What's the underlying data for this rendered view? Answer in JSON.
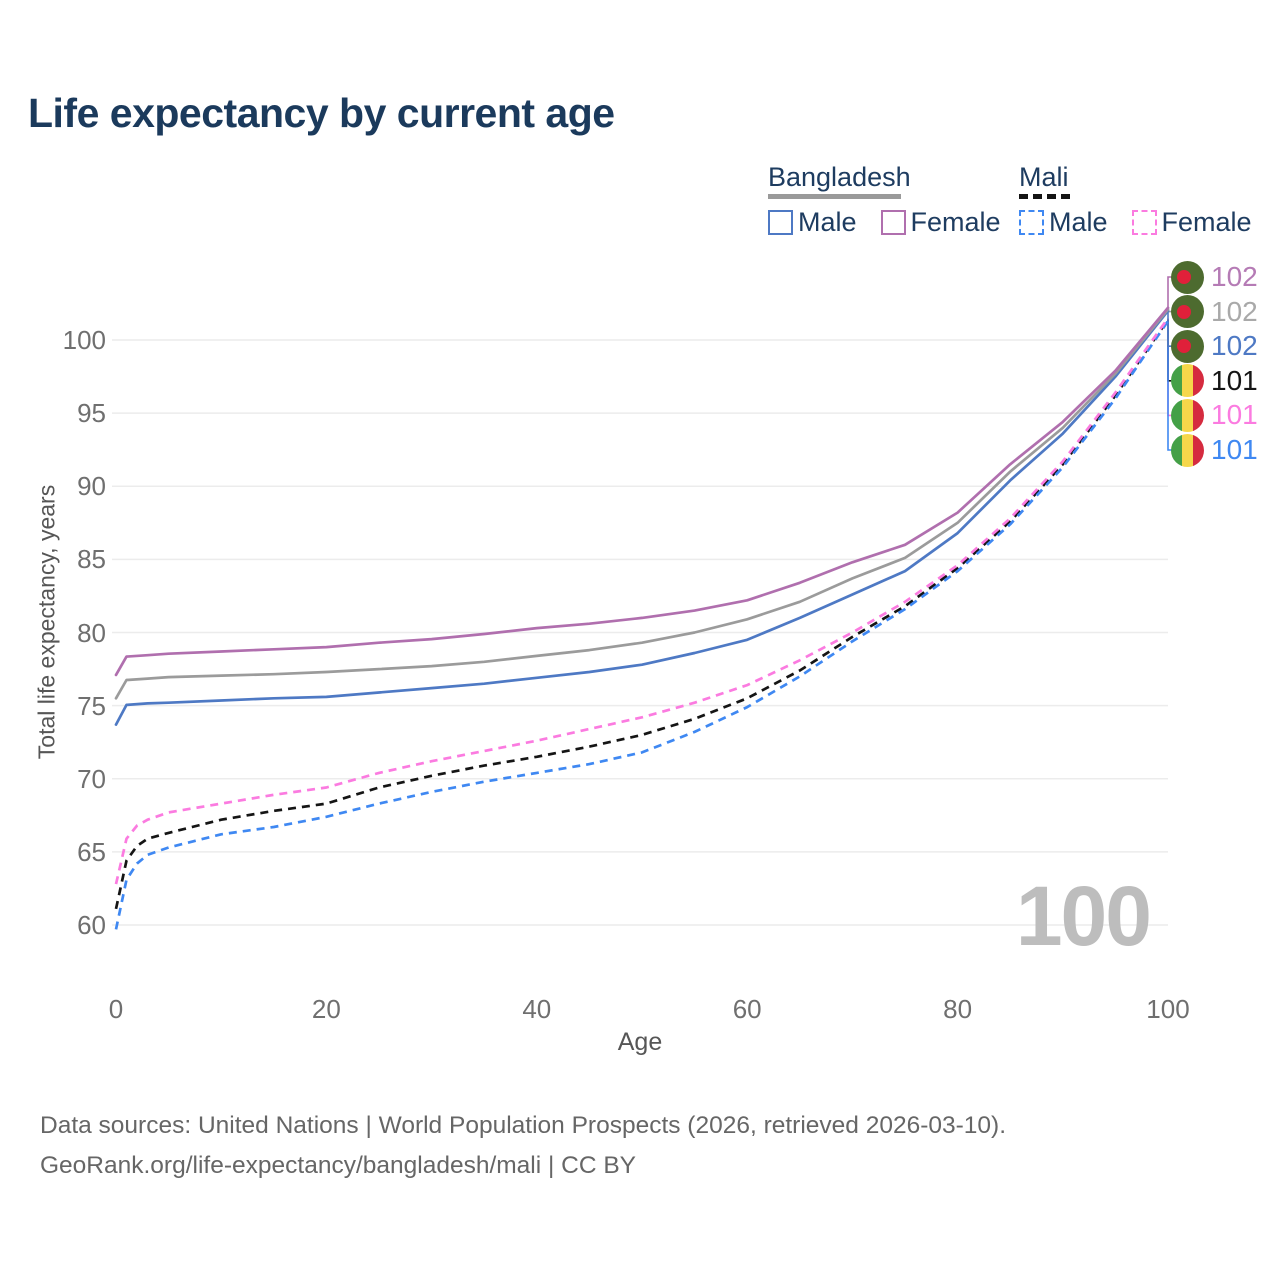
{
  "title": "Life expectancy by current age",
  "legend": {
    "groups": [
      {
        "label": "Bangladesh",
        "line_style": "solid",
        "items": [
          {
            "label": "Male",
            "color": "#4e79c4"
          },
          {
            "label": "Female",
            "color": "#b06fae"
          }
        ]
      },
      {
        "label": "Mali",
        "line_style": "dashed",
        "items": [
          {
            "label": "Male",
            "color": "#3f88f2"
          },
          {
            "label": "Female",
            "color": "#fb7be0"
          }
        ]
      }
    ]
  },
  "axes": {
    "y_label": "Total life expectancy, years",
    "y_ticks": [
      60,
      65,
      70,
      75,
      80,
      85,
      90,
      95,
      100
    ],
    "x_label": "Age",
    "x_ticks": [
      0,
      20,
      40,
      60,
      80,
      100
    ]
  },
  "watermark": "100",
  "end_labels": [
    {
      "value": "102",
      "series": "bangladesh-female",
      "flag": "bangladesh",
      "color": "#b57bb5"
    },
    {
      "value": "102",
      "series": "bangladesh-total",
      "flag": "bangladesh",
      "color": "#a9a9a9"
    },
    {
      "value": "102",
      "series": "bangladesh-male",
      "flag": "bangladesh",
      "color": "#4e79c4"
    },
    {
      "value": "101",
      "series": "mali-total",
      "flag": "mali",
      "color": "#151515"
    },
    {
      "value": "101",
      "series": "mali-female",
      "flag": "mali",
      "color": "#fb7be0"
    },
    {
      "value": "101",
      "series": "mali-male",
      "flag": "mali",
      "color": "#3f88f2"
    }
  ],
  "footer": {
    "line1": "Data sources: United Nations | World Population Prospects (2026, retrieved 2026-03-10).",
    "line2": "GeoRank.org/life-expectancy/bangladesh/mali | CC BY"
  },
  "colors": {
    "title_text": "#1b3a5c",
    "legend_text": "#1e3c60",
    "grid": "#ececec",
    "tick_text": "#6f6f6f",
    "watermark": "#bdbdbd",
    "bangladesh_flag_green": "#4d6b2f",
    "bangladesh_flag_red": "#e0203a",
    "mali_flag_green": "#44a047",
    "mali_flag_yellow": "#f6d74a",
    "mali_flag_red": "#d52b3f"
  },
  "chart_data": {
    "type": "line",
    "title": "Life expectancy by current age",
    "xlabel": "Age",
    "ylabel": "Total life expectancy, years",
    "xlim": [
      0,
      100
    ],
    "ylim": [
      59,
      103
    ],
    "grid": true,
    "legend_position": "top-right",
    "series": [
      {
        "key": "bangladesh-male",
        "name": "Bangladesh Male",
        "color": "#4e79c4",
        "dashed": false,
        "points": [
          [
            0,
            73.7
          ],
          [
            1,
            75.05
          ],
          [
            3,
            75.15
          ],
          [
            5,
            75.2
          ],
          [
            10,
            75.35
          ],
          [
            15,
            75.5
          ],
          [
            20,
            75.6
          ],
          [
            25,
            75.9
          ],
          [
            30,
            76.2
          ],
          [
            35,
            76.5
          ],
          [
            40,
            76.9
          ],
          [
            45,
            77.3
          ],
          [
            50,
            77.8
          ],
          [
            55,
            78.6
          ],
          [
            60,
            79.5
          ],
          [
            65,
            81.0
          ],
          [
            70,
            82.6
          ],
          [
            75,
            84.2
          ],
          [
            80,
            86.8
          ],
          [
            85,
            90.4
          ],
          [
            90,
            93.6
          ],
          [
            95,
            97.5
          ],
          [
            100,
            102.0
          ]
        ]
      },
      {
        "key": "bangladesh-total",
        "name": "Bangladesh Both sexes",
        "color": "#9b9b9b",
        "dashed": false,
        "points": [
          [
            0,
            75.5
          ],
          [
            1,
            76.75
          ],
          [
            3,
            76.85
          ],
          [
            5,
            76.95
          ],
          [
            10,
            77.05
          ],
          [
            15,
            77.15
          ],
          [
            20,
            77.3
          ],
          [
            25,
            77.5
          ],
          [
            30,
            77.7
          ],
          [
            35,
            78.0
          ],
          [
            40,
            78.4
          ],
          [
            45,
            78.8
          ],
          [
            50,
            79.3
          ],
          [
            55,
            80.0
          ],
          [
            60,
            80.9
          ],
          [
            65,
            82.1
          ],
          [
            70,
            83.7
          ],
          [
            75,
            85.1
          ],
          [
            80,
            87.5
          ],
          [
            85,
            91.0
          ],
          [
            90,
            94.0
          ],
          [
            95,
            97.7
          ],
          [
            100,
            102.1
          ]
        ]
      },
      {
        "key": "bangladesh-female",
        "name": "Bangladesh Female",
        "color": "#b06fae",
        "dashed": false,
        "points": [
          [
            0,
            77.1
          ],
          [
            1,
            78.35
          ],
          [
            3,
            78.45
          ],
          [
            5,
            78.55
          ],
          [
            10,
            78.7
          ],
          [
            15,
            78.85
          ],
          [
            20,
            79.0
          ],
          [
            25,
            79.3
          ],
          [
            30,
            79.55
          ],
          [
            35,
            79.9
          ],
          [
            40,
            80.3
          ],
          [
            45,
            80.6
          ],
          [
            50,
            81.0
          ],
          [
            55,
            81.5
          ],
          [
            60,
            82.2
          ],
          [
            65,
            83.4
          ],
          [
            70,
            84.8
          ],
          [
            75,
            86.0
          ],
          [
            80,
            88.2
          ],
          [
            85,
            91.5
          ],
          [
            90,
            94.4
          ],
          [
            95,
            97.9
          ],
          [
            100,
            102.2
          ]
        ]
      },
      {
        "key": "mali-total",
        "name": "Mali Both sexes",
        "color": "#151515",
        "dashed": true,
        "points": [
          [
            0,
            61.1
          ],
          [
            1,
            64.4
          ],
          [
            2,
            65.4
          ],
          [
            3,
            65.9
          ],
          [
            5,
            66.3
          ],
          [
            10,
            67.2
          ],
          [
            15,
            67.8
          ],
          [
            20,
            68.3
          ],
          [
            25,
            69.4
          ],
          [
            30,
            70.2
          ],
          [
            35,
            70.9
          ],
          [
            40,
            71.5
          ],
          [
            45,
            72.2
          ],
          [
            50,
            73.0
          ],
          [
            55,
            74.1
          ],
          [
            60,
            75.5
          ],
          [
            65,
            77.4
          ],
          [
            70,
            79.7
          ],
          [
            75,
            81.8
          ],
          [
            80,
            84.4
          ],
          [
            85,
            87.6
          ],
          [
            90,
            91.5
          ],
          [
            95,
            96.2
          ],
          [
            100,
            101.4
          ]
        ]
      },
      {
        "key": "mali-male",
        "name": "Mali Male",
        "color": "#3f88f2",
        "dashed": true,
        "points": [
          [
            0,
            59.7
          ],
          [
            1,
            63.1
          ],
          [
            2,
            64.2
          ],
          [
            3,
            64.8
          ],
          [
            5,
            65.3
          ],
          [
            10,
            66.2
          ],
          [
            15,
            66.7
          ],
          [
            20,
            67.4
          ],
          [
            25,
            68.3
          ],
          [
            30,
            69.1
          ],
          [
            35,
            69.8
          ],
          [
            40,
            70.4
          ],
          [
            45,
            71.0
          ],
          [
            50,
            71.8
          ],
          [
            55,
            73.2
          ],
          [
            60,
            74.9
          ],
          [
            65,
            77.0
          ],
          [
            70,
            79.4
          ],
          [
            75,
            81.6
          ],
          [
            80,
            84.2
          ],
          [
            85,
            87.4
          ],
          [
            90,
            91.3
          ],
          [
            95,
            96.0
          ],
          [
            100,
            101.3
          ]
        ]
      },
      {
        "key": "mali-female",
        "name": "Mali Female",
        "color": "#fb7be0",
        "dashed": true,
        "points": [
          [
            0,
            62.8
          ],
          [
            1,
            65.9
          ],
          [
            2,
            66.8
          ],
          [
            3,
            67.2
          ],
          [
            5,
            67.7
          ],
          [
            10,
            68.3
          ],
          [
            15,
            68.9
          ],
          [
            20,
            69.4
          ],
          [
            25,
            70.4
          ],
          [
            30,
            71.2
          ],
          [
            35,
            71.9
          ],
          [
            40,
            72.6
          ],
          [
            45,
            73.4
          ],
          [
            50,
            74.2
          ],
          [
            55,
            75.2
          ],
          [
            60,
            76.4
          ],
          [
            65,
            78.1
          ],
          [
            70,
            80.0
          ],
          [
            75,
            82.1
          ],
          [
            80,
            84.6
          ],
          [
            85,
            87.8
          ],
          [
            90,
            91.7
          ],
          [
            95,
            96.4
          ],
          [
            100,
            101.5
          ]
        ]
      }
    ]
  }
}
